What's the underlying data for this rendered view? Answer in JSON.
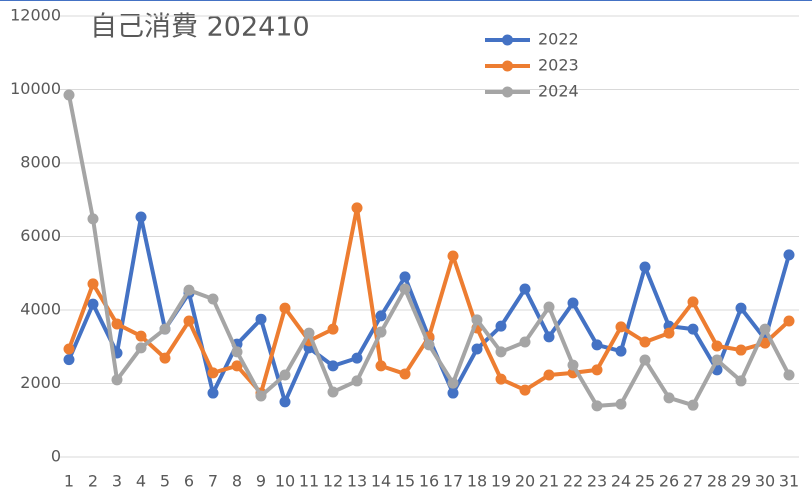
{
  "chart_data": {
    "type": "line",
    "title": "自己消費 202410",
    "categories": [
      "1",
      "2",
      "3",
      "4",
      "5",
      "6",
      "7",
      "8",
      "9",
      "10",
      "11",
      "12",
      "13",
      "14",
      "15",
      "16",
      "17",
      "18",
      "19",
      "20",
      "21",
      "22",
      "23",
      "24",
      "25",
      "26",
      "27",
      "28",
      "29",
      "30",
      "31"
    ],
    "series": [
      {
        "name": "2022",
        "color": "#4472c4",
        "values": [
          2650,
          4160,
          2830,
          6530,
          3480,
          4460,
          1740,
          3070,
          3750,
          1500,
          2970,
          2480,
          2690,
          3840,
          4900,
          3240,
          1740,
          2940,
          3560,
          4570,
          3270,
          4190,
          3050,
          2880,
          5170,
          3560,
          3480,
          2370,
          4050,
          3210,
          5500
        ]
      },
      {
        "name": "2023",
        "color": "#ed7d31",
        "values": [
          2940,
          4710,
          3620,
          3290,
          2690,
          3700,
          2290,
          2480,
          1740,
          4050,
          3160,
          3480,
          6780,
          2480,
          2260,
          3270,
          5470,
          3510,
          2120,
          1820,
          2230,
          2290,
          2370,
          3540,
          3130,
          3370,
          4220,
          3020,
          2910,
          3100,
          3700
        ]
      },
      {
        "name": "2024",
        "color": "#a5a5a5",
        "values": [
          9850,
          6480,
          2100,
          2970,
          3480,
          4540,
          4300,
          2860,
          1660,
          2230,
          3370,
          1770,
          2070,
          3400,
          4570,
          3050,
          2010,
          3730,
          2860,
          3130,
          4080,
          2500,
          1390,
          1440,
          2640,
          1610,
          1410,
          2640,
          2070,
          3480,
          2230
        ]
      }
    ],
    "ylim": [
      0,
      12000
    ],
    "yticks": [
      0,
      2000,
      4000,
      6000,
      8000,
      10000,
      12000
    ],
    "grid": true,
    "legend": "upper-center"
  }
}
